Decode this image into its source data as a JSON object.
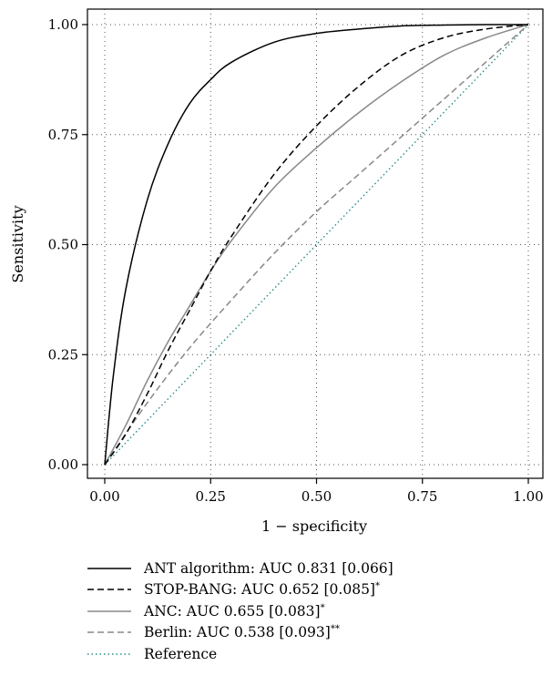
{
  "chart_data": {
    "type": "line",
    "xlabel": "1 − specificity",
    "ylabel": "Sensitivity",
    "xlim": [
      0,
      1
    ],
    "ylim": [
      0,
      1
    ],
    "x_ticks": [
      "0.00",
      "0.25",
      "0.50",
      "0.75",
      "1.00"
    ],
    "y_ticks": [
      "0.00",
      "0.25",
      "0.50",
      "0.75",
      "1.00"
    ],
    "grid": true,
    "legend_position": "bottom",
    "series": [
      {
        "name": "ANT algorithm: AUC 0.831 [0.066]",
        "name_main": "ANT algorithm: AUC 0.831 [0.066]",
        "name_sup": "",
        "style": "solid",
        "color": "#000000",
        "x": [
          0,
          0.02,
          0.05,
          0.1,
          0.15,
          0.2,
          0.25,
          0.3,
          0.4,
          0.5,
          0.6,
          0.7,
          0.8,
          0.9,
          1.0
        ],
        "y": [
          0,
          0.2,
          0.4,
          0.6,
          0.73,
          0.82,
          0.875,
          0.915,
          0.96,
          0.98,
          0.99,
          0.997,
          0.999,
          1.0,
          1.0
        ]
      },
      {
        "name": "STOP-BANG: AUC 0.652 [0.085]*",
        "name_main": "STOP-BANG: AUC 0.652 [0.085]",
        "name_sup": "*",
        "style": "dashed",
        "color": "#000000",
        "x": [
          0,
          0.05,
          0.1,
          0.15,
          0.2,
          0.25,
          0.3,
          0.4,
          0.5,
          0.6,
          0.7,
          0.8,
          0.9,
          1.0
        ],
        "y": [
          0,
          0.07,
          0.16,
          0.26,
          0.35,
          0.44,
          0.52,
          0.66,
          0.77,
          0.86,
          0.93,
          0.97,
          0.99,
          1.0
        ]
      },
      {
        "name": "ANC: AUC 0.655 [0.083]*",
        "name_main": "ANC: AUC 0.655 [0.083]",
        "name_sup": "*",
        "style": "solid",
        "color": "#888888",
        "x": [
          0,
          0.05,
          0.1,
          0.15,
          0.2,
          0.25,
          0.3,
          0.4,
          0.5,
          0.6,
          0.7,
          0.8,
          0.9,
          1.0
        ],
        "y": [
          0,
          0.09,
          0.19,
          0.28,
          0.36,
          0.44,
          0.51,
          0.63,
          0.72,
          0.8,
          0.87,
          0.93,
          0.97,
          1.0
        ]
      },
      {
        "name": "Berlin: AUC 0.538 [0.093]**",
        "name_main": "Berlin: AUC 0.538 [0.093]",
        "name_sup": "**",
        "style": "dashed",
        "color": "#888888",
        "x": [
          0,
          0.1,
          0.2,
          0.3,
          0.4,
          0.5,
          0.6,
          0.7,
          0.8,
          0.9,
          1.0
        ],
        "y": [
          0,
          0.14,
          0.265,
          0.375,
          0.48,
          0.575,
          0.66,
          0.745,
          0.83,
          0.915,
          1.0
        ]
      },
      {
        "name": "Reference",
        "name_main": "Reference",
        "name_sup": "",
        "style": "dotted",
        "color": "#2a8a8a",
        "x": [
          0,
          1
        ],
        "y": [
          0,
          1
        ]
      }
    ]
  }
}
